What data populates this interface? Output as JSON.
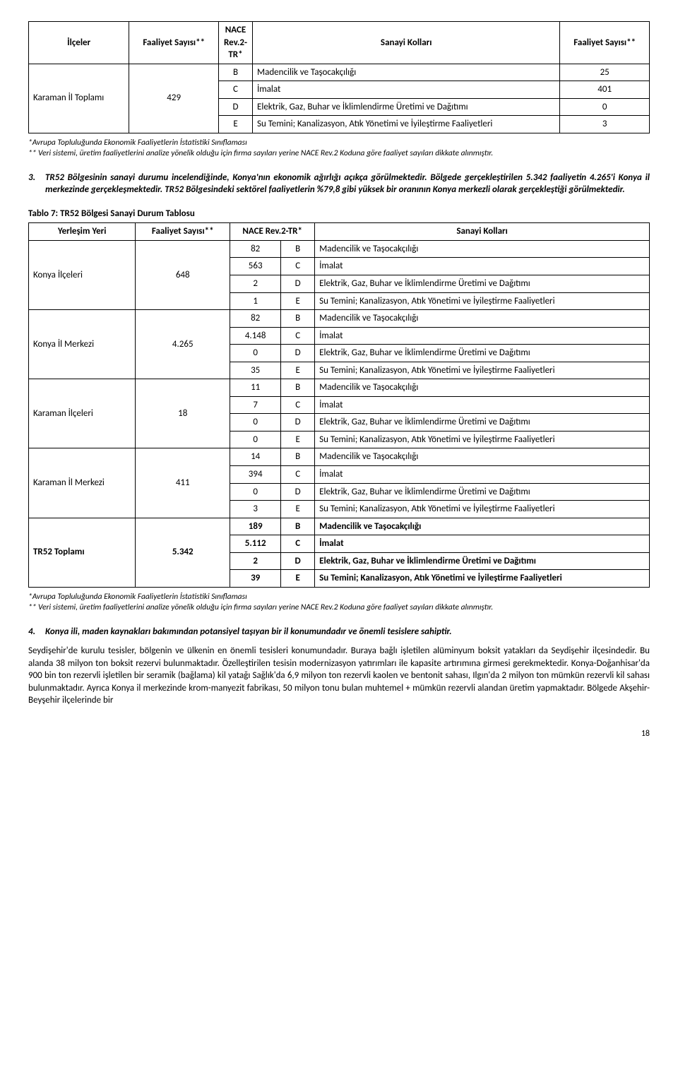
{
  "table1": {
    "headers": [
      "İlçeler",
      "Faaliyet Sayısı**",
      "NACE Rev.2-TR*",
      "Sanayi Kolları",
      "Faaliyet Sayısı**"
    ],
    "group": {
      "label": "Karaman İl Toplamı",
      "count": "429"
    },
    "rows": [
      {
        "code": "B",
        "desc": "Madencilik ve Taşocakçılığı",
        "val": "25"
      },
      {
        "code": "C",
        "desc": "İmalat",
        "val": "401"
      },
      {
        "code": "D",
        "desc": "Elektrik, Gaz, Buhar ve İklimlendirme Üretimi ve Dağıtımı",
        "val": "0"
      },
      {
        "code": "E",
        "desc": "Su Temini; Kanalizasyon, Atık Yönetimi ve İyileştirme Faaliyetleri",
        "val": "3"
      }
    ]
  },
  "footnote1_a": "*Avrupa Topluluğunda Ekonomik Faaliyetlerin İstatistiki Sınıflaması",
  "footnote1_b": "** Veri sistemi, üretim faaliyetlerini analize yönelik olduğu için firma sayıları yerine NACE Rev.2 Koduna göre faaliyet sayıları dikkate alınmıştır.",
  "para3_num": "3.",
  "para3": "TR52 Bölgesinin sanayi durumu incelendiğinde, Konya'nın ekonomik ağırlığı açıkça görülmektedir. Bölgede gerçekleştirilen 5.342 faaliyetin 4.265'i Konya il merkezinde gerçekleşmektedir. TR52 Bölgesindeki sektörel faaliyetlerin %79,8 gibi yüksek bir oranının Konya merkezli olarak gerçekleştiği görülmektedir.",
  "table2_caption": "Tablo 7: TR52 Bölgesi Sanayi Durum Tablosu",
  "table2": {
    "headers": [
      "Yerleşim Yeri",
      "Faaliyet Sayısı**",
      "NACE Rev.2-TR*",
      "Sanayi Kolları"
    ],
    "groups": [
      {
        "label": "Konya İlçeleri",
        "count": "648",
        "bold": false,
        "rows": [
          {
            "n": "82",
            "c": "B",
            "d": "Madencilik ve Taşocakçılığı"
          },
          {
            "n": "563",
            "c": "C",
            "d": "İmalat"
          },
          {
            "n": "2",
            "c": "D",
            "d": "Elektrik, Gaz, Buhar ve İklimlendirme Üretimi ve Dağıtımı"
          },
          {
            "n": "1",
            "c": "E",
            "d": "Su Temini; Kanalizasyon, Atık Yönetimi ve İyileştirme Faaliyetleri"
          }
        ]
      },
      {
        "label": "Konya İl Merkezi",
        "count": "4.265",
        "bold": false,
        "rows": [
          {
            "n": "82",
            "c": "B",
            "d": "Madencilik ve Taşocakçılığı"
          },
          {
            "n": "4.148",
            "c": "C",
            "d": "İmalat"
          },
          {
            "n": "0",
            "c": "D",
            "d": "Elektrik, Gaz, Buhar ve İklimlendirme Üretimi ve Dağıtımı"
          },
          {
            "n": "35",
            "c": "E",
            "d": "Su Temini; Kanalizasyon, Atık Yönetimi ve İyileştirme Faaliyetleri"
          }
        ]
      },
      {
        "label": "Karaman İlçeleri",
        "count": "18",
        "bold": false,
        "rows": [
          {
            "n": "11",
            "c": "B",
            "d": "Madencilik ve Taşocakçılığı"
          },
          {
            "n": "7",
            "c": "C",
            "d": "İmalat"
          },
          {
            "n": "0",
            "c": "D",
            "d": "Elektrik, Gaz, Buhar ve İklimlendirme Üretimi ve Dağıtımı"
          },
          {
            "n": "0",
            "c": "E",
            "d": "Su Temini; Kanalizasyon, Atık Yönetimi ve İyileştirme Faaliyetleri"
          }
        ]
      },
      {
        "label": "Karaman İl Merkezi",
        "count": "411",
        "bold": false,
        "rows": [
          {
            "n": "14",
            "c": "B",
            "d": "Madencilik ve Taşocakçılığı"
          },
          {
            "n": "394",
            "c": "C",
            "d": "İmalat"
          },
          {
            "n": "0",
            "c": "D",
            "d": "Elektrik, Gaz, Buhar ve İklimlendirme Üretimi ve Dağıtımı"
          },
          {
            "n": "3",
            "c": "E",
            "d": "Su Temini; Kanalizasyon, Atık Yönetimi ve İyileştirme Faaliyetleri"
          }
        ]
      },
      {
        "label": "TR52 Toplamı",
        "count": "5.342",
        "bold": true,
        "rows": [
          {
            "n": "189",
            "c": "B",
            "d": "Madencilik ve Taşocakçılığı"
          },
          {
            "n": "5.112",
            "c": "C",
            "d": "İmalat"
          },
          {
            "n": "2",
            "c": "D",
            "d": "Elektrik, Gaz, Buhar ve İklimlendirme Üretimi ve Dağıtımı"
          },
          {
            "n": "39",
            "c": "E",
            "d": "Su Temini; Kanalizasyon, Atık Yönetimi ve İyileştirme Faaliyetleri"
          }
        ]
      }
    ]
  },
  "para4_num": "4.",
  "para4_head": "Konya ili, maden kaynakları bakımından potansiyel taşıyan bir il konumundadır ve önemli tesislere sahiptir.",
  "para4_body": "Seydişehir'de kurulu tesisler, bölgenin ve ülkenin en önemli tesisleri konumundadır. Buraya bağlı işletilen alüminyum boksit yatakları da Seydişehir ilçesindedir. Bu alanda 38 milyon ton boksit rezervi bulunmaktadır. Özelleştirilen tesisin modernizasyon yatırımları ile kapasite artırımına girmesi gerekmektedir. Konya-Doğanhisar'da 900 bin ton rezervli işletilen bir seramik (bağlama) kil yatağı Sağlık'da 6,9 milyon ton rezervli kaolen ve bentonit sahası, Ilgın'da 2 milyon ton mümkün rezervli kil sahası bulunmaktadır. Ayrıca Konya il merkezinde krom-manyezit fabrikası, 50 milyon tonu bulan muhtemel + mümkün rezervli alandan üretim yapmaktadır. Bölgede Akşehir-Beyşehir ilçelerinde bir",
  "page": "18"
}
